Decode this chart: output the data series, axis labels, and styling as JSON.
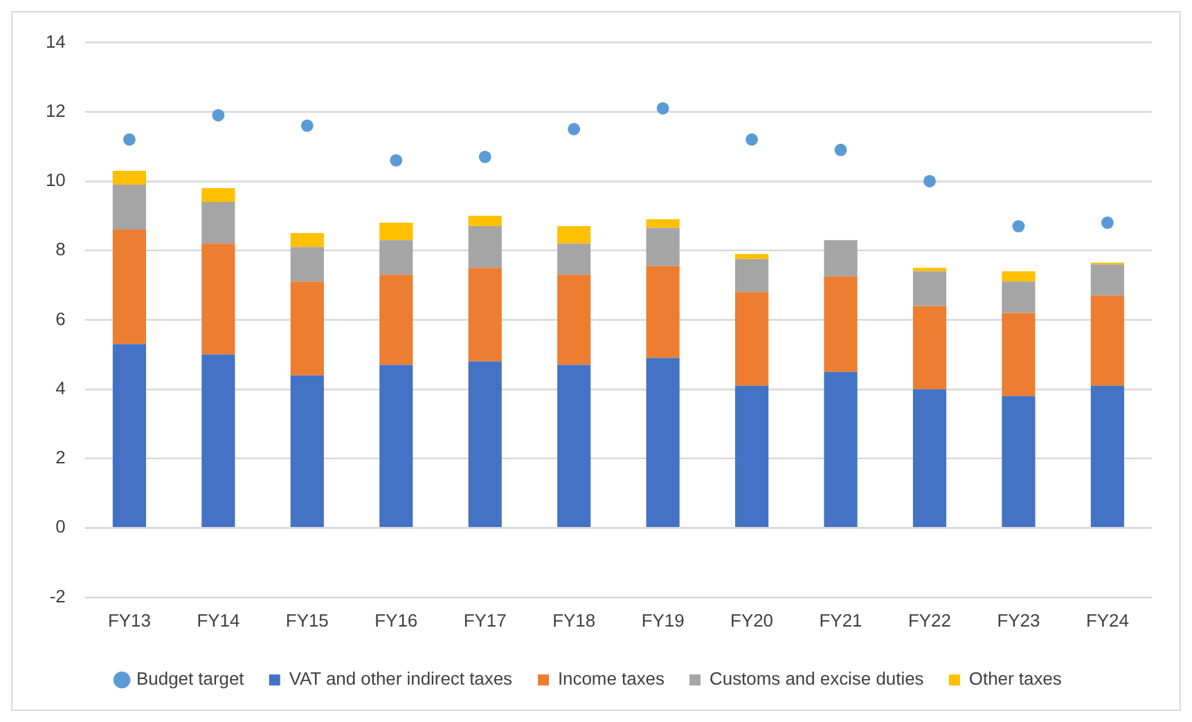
{
  "chart_data": {
    "type": "bar",
    "stacked": true,
    "categories": [
      "FY13",
      "FY14",
      "FY15",
      "FY16",
      "FY17",
      "FY18",
      "FY19",
      "FY20",
      "FY21",
      "FY22",
      "FY23",
      "FY24"
    ],
    "series": [
      {
        "name": "VAT and other indirect taxes",
        "color": "#4472c4",
        "values": [
          5.3,
          5.0,
          4.4,
          4.7,
          4.8,
          4.7,
          4.9,
          4.1,
          4.5,
          4.0,
          3.8,
          4.1
        ]
      },
      {
        "name": "Income taxes",
        "color": "#ed7d31",
        "values": [
          3.3,
          3.2,
          2.7,
          2.6,
          2.7,
          2.6,
          2.65,
          2.7,
          2.75,
          2.4,
          2.4,
          2.6
        ]
      },
      {
        "name": "Customs and excise duties",
        "color": "#a5a5a5",
        "values": [
          1.3,
          1.2,
          1.0,
          1.0,
          1.2,
          0.9,
          1.1,
          0.95,
          1.05,
          1.0,
          0.9,
          0.9
        ]
      },
      {
        "name": "Other taxes",
        "color": "#ffc000",
        "values": [
          0.4,
          0.4,
          0.4,
          0.5,
          0.3,
          0.5,
          0.25,
          0.15,
          0,
          0.1,
          0.3,
          0.05
        ]
      },
      {
        "name": "Budget target",
        "type": "scatter",
        "color": "#5b9bd5",
        "marker": "circle",
        "values": [
          11.2,
          11.9,
          11.6,
          10.6,
          10.7,
          11.5,
          12.1,
          11.2,
          10.9,
          10.0,
          8.7,
          8.8
        ]
      }
    ],
    "ylim": [
      -2,
      14
    ],
    "yticks": [
      -2,
      0,
      2,
      4,
      6,
      8,
      10,
      12,
      14
    ],
    "grid": "y",
    "legend": "bottom"
  }
}
